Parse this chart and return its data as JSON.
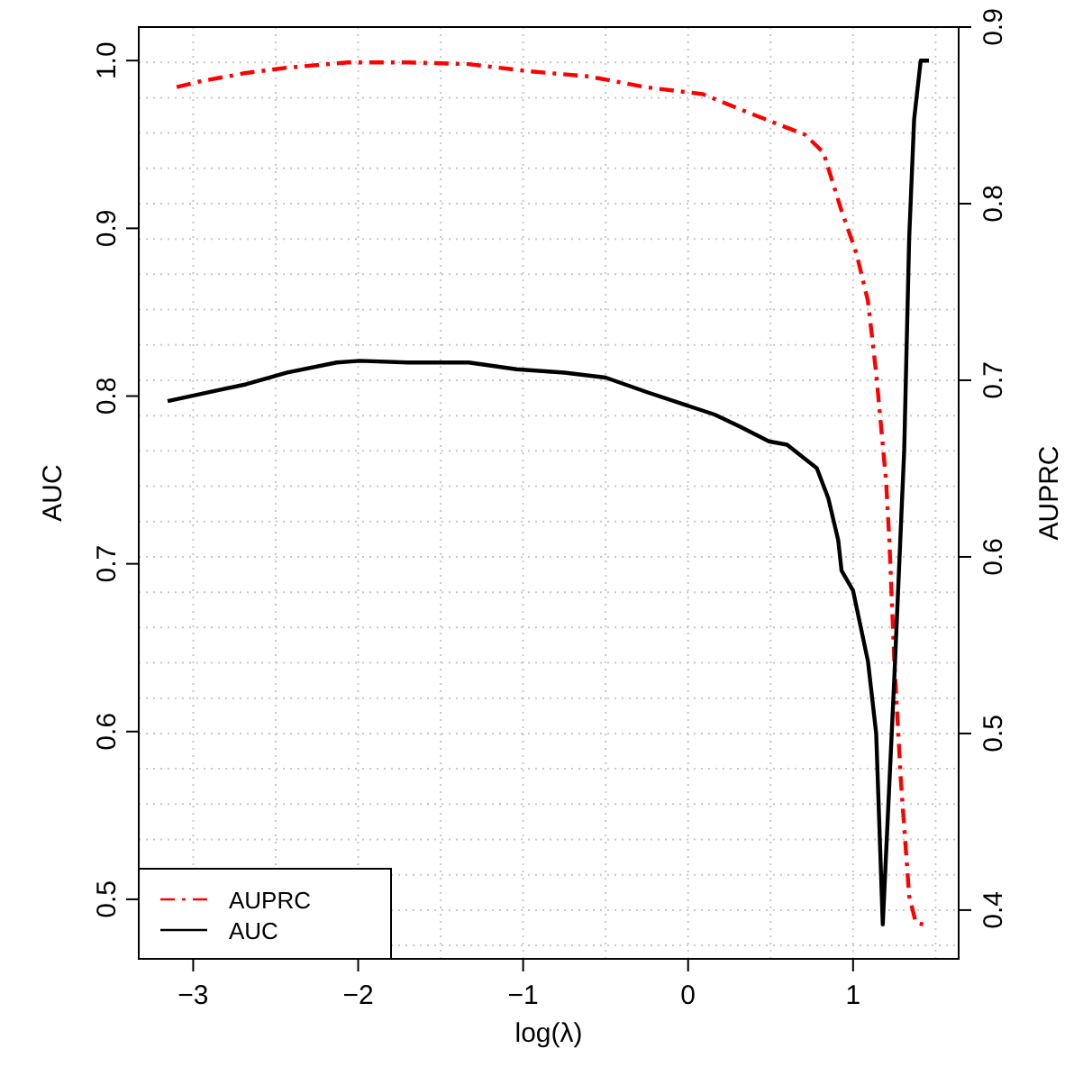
{
  "chart_data": {
    "type": "line",
    "xlabel": "log(λ)",
    "ylabel": "AUC",
    "y2label": "AUPRC",
    "xlim": [
      -3.33,
      1.64
    ],
    "xticks": [
      -3,
      -2,
      -1,
      0,
      1
    ],
    "ylim": [
      0.4645,
      1.02
    ],
    "yticks": [
      0.5,
      0.6,
      0.7,
      0.8,
      0.9,
      {
        "value": 1,
        "label": "1.0"
      }
    ],
    "y2lim": [
      0.3724,
      0.9
    ],
    "y2ticks": [
      0.4,
      0.5,
      0.6,
      0.7,
      0.8,
      0.9
    ],
    "grid": true,
    "legend": "bottom left",
    "series": [
      {
        "name": "AUPRC",
        "color": "#ff0000",
        "axis": "y2",
        "line_style": "dashdot",
        "x": [
          -3.1,
          -2.97,
          -2.68,
          -2.43,
          -2.06,
          -1.7,
          -1.33,
          -0.97,
          -0.6,
          -0.26,
          0.09,
          0.38,
          0.71,
          0.82,
          0.93,
          1.02,
          1.09,
          1.14,
          1.2,
          1.22,
          1.25,
          1.29,
          1.34,
          1.38,
          1.46
        ],
        "values": [
          0.866,
          0.869,
          0.874,
          0.877,
          0.88,
          0.88,
          0.879,
          0.875,
          0.872,
          0.866,
          0.862,
          0.851,
          0.839,
          0.829,
          0.796,
          0.772,
          0.745,
          0.704,
          0.643,
          0.609,
          0.541,
          0.473,
          0.408,
          0.393,
          0.391
        ]
      },
      {
        "name": "AUC",
        "color": "#000000",
        "line_style": "solid",
        "x": [
          -3.155,
          -2.68,
          -2.43,
          -2.13,
          -1.99,
          -1.7,
          -1.33,
          -1.04,
          -0.75,
          -0.5,
          -0.24,
          0.16,
          0.31,
          0.49,
          0.6,
          0.78,
          0.85,
          0.91,
          0.93,
          1.0,
          1.09,
          1.14,
          1.18,
          1.25,
          1.31,
          1.34,
          1.37,
          1.41,
          1.46
        ],
        "values": [
          0.797,
          0.807,
          0.814,
          0.82,
          0.821,
          0.82,
          0.82,
          0.816,
          0.814,
          0.811,
          0.802,
          0.789,
          0.782,
          0.773,
          0.771,
          0.757,
          0.739,
          0.714,
          0.696,
          0.684,
          0.642,
          0.599,
          0.485,
          0.632,
          0.768,
          0.894,
          0.965,
          1.0,
          1.0
        ]
      }
    ]
  }
}
